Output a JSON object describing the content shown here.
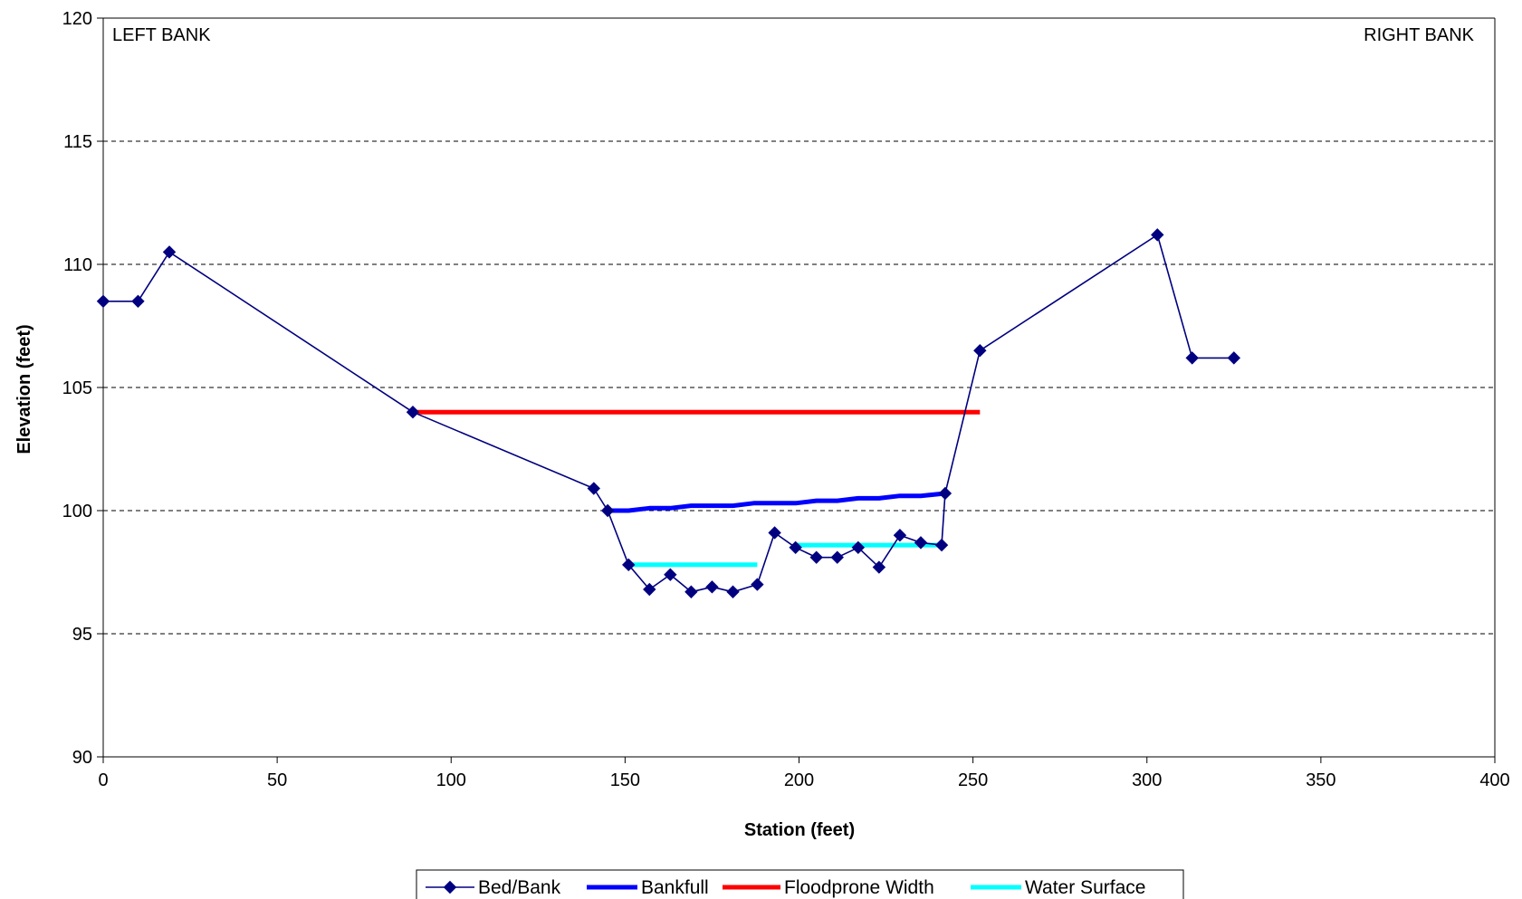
{
  "chart_data": {
    "type": "line",
    "title": "",
    "xlabel": "Station (feet)",
    "ylabel": "Elevation (feet)",
    "xlim": [
      0,
      400
    ],
    "ylim": [
      90,
      120
    ],
    "x_ticks": [
      "0",
      "50",
      "100",
      "150",
      "200",
      "250",
      "300",
      "350",
      "400"
    ],
    "y_ticks": [
      "90",
      "95",
      "100",
      "105",
      "110",
      "115",
      "120"
    ],
    "grid": "horizontal dashed",
    "legend_position": "bottom",
    "annotations": [
      "LEFT BANK",
      "RIGHT BANK"
    ],
    "series": [
      {
        "name": "Bed/Bank",
        "color": "#000080",
        "marker": "diamond",
        "points": [
          [
            0,
            108.5
          ],
          [
            10,
            108.5
          ],
          [
            19,
            110.5
          ],
          [
            89,
            104
          ],
          [
            141,
            100.9
          ],
          [
            145,
            100
          ],
          [
            151,
            97.8
          ],
          [
            157,
            96.8
          ],
          [
            163,
            97.4
          ],
          [
            169,
            96.7
          ],
          [
            175,
            96.9
          ],
          [
            181,
            96.7
          ],
          [
            188,
            97
          ],
          [
            193,
            99.1
          ],
          [
            199,
            98.5
          ],
          [
            205,
            98.1
          ],
          [
            211,
            98.1
          ],
          [
            217,
            98.5
          ],
          [
            223,
            97.7
          ],
          [
            229,
            99
          ],
          [
            235,
            98.7
          ],
          [
            241,
            98.6
          ],
          [
            242,
            100.7
          ],
          [
            252,
            106.5
          ],
          [
            303,
            111.2
          ],
          [
            313,
            106.2
          ],
          [
            325,
            106.2
          ]
        ]
      },
      {
        "name": "Bankfull",
        "color": "#0000ff",
        "marker": "none",
        "points": [
          [
            145,
            100
          ],
          [
            151,
            100
          ],
          [
            157,
            100.1
          ],
          [
            163,
            100.1
          ],
          [
            169,
            100.2
          ],
          [
            175,
            100.2
          ],
          [
            181,
            100.2
          ],
          [
            187,
            100.3
          ],
          [
            193,
            100.3
          ],
          [
            199,
            100.3
          ],
          [
            205,
            100.4
          ],
          [
            211,
            100.4
          ],
          [
            217,
            100.5
          ],
          [
            223,
            100.5
          ],
          [
            229,
            100.6
          ],
          [
            235,
            100.6
          ],
          [
            242,
            100.7
          ]
        ]
      },
      {
        "name": "Floodprone Width",
        "color": "#ff0000",
        "marker": "none",
        "points": [
          [
            89,
            104
          ],
          [
            252,
            104
          ]
        ]
      },
      {
        "name": "Water Surface",
        "color": "#00ffff",
        "marker": "none",
        "segments": [
          [
            [
              151,
              97.8
            ],
            [
              188,
              97.8
            ]
          ],
          [
            [
              199,
              98.6
            ],
            [
              241,
              98.6
            ]
          ]
        ]
      }
    ]
  }
}
